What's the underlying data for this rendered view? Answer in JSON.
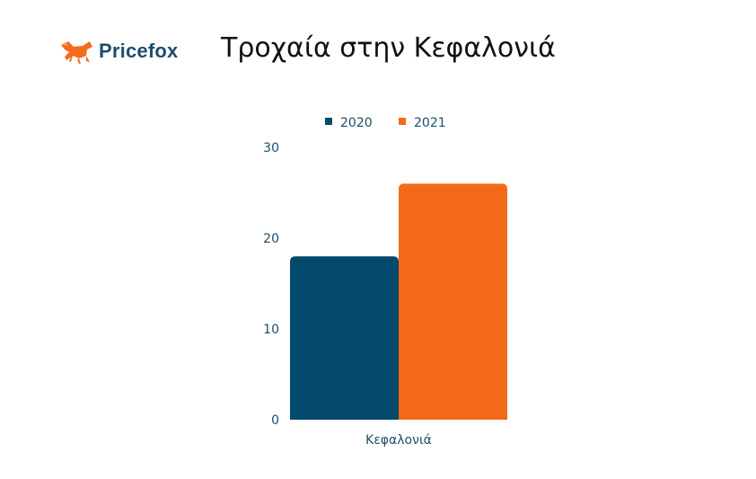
{
  "brand": {
    "name": "Pricefox",
    "logo_icon": "fox-icon",
    "logo_color": "#f26c1c",
    "text_color": "#1f4d6b"
  },
  "chart_data": {
    "type": "bar",
    "title": "Τροχαία στην Κεφαλονιά",
    "categories": [
      "Κεφαλονιά"
    ],
    "series": [
      {
        "name": "2020",
        "values": [
          18
        ],
        "color": "#03496b"
      },
      {
        "name": "2021",
        "values": [
          26
        ],
        "color": "#f26a18"
      }
    ],
    "ylim": [
      0,
      30
    ],
    "yticks": [
      0,
      10,
      20,
      30
    ],
    "xlabel": "",
    "ylabel": "",
    "grid": false,
    "legend": "top-center"
  }
}
